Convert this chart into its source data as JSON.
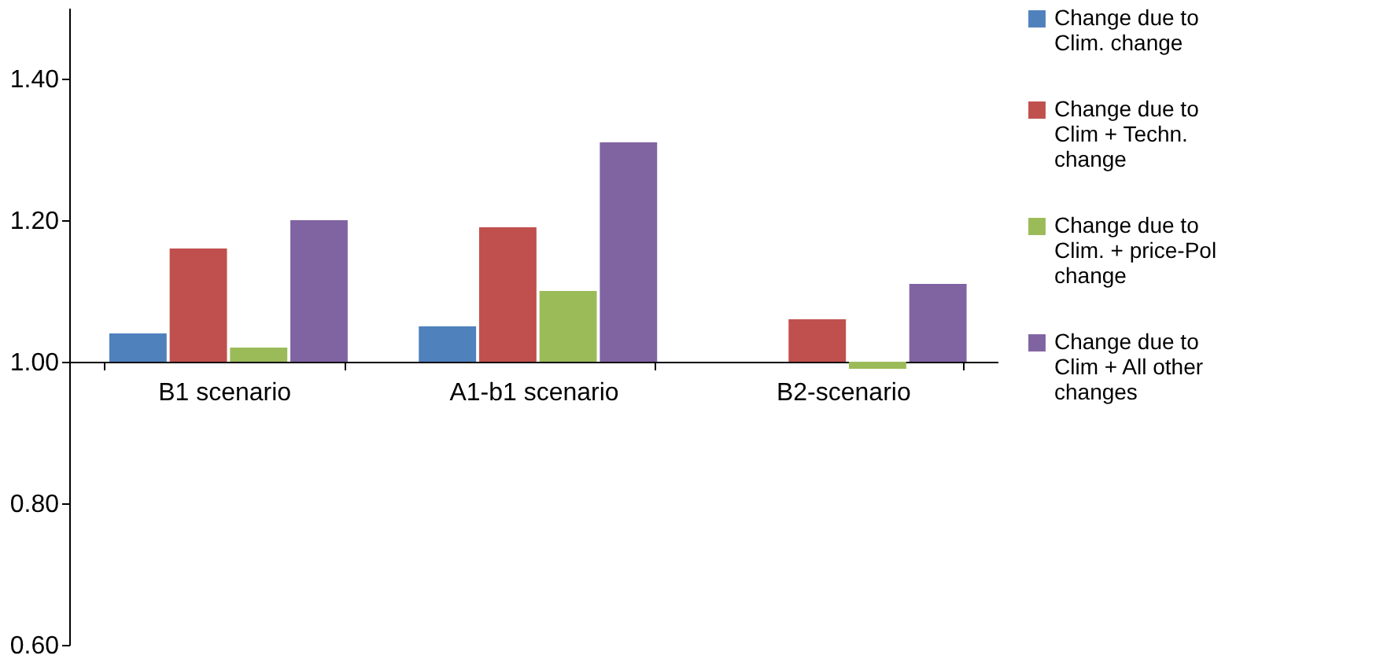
{
  "chart_data": {
    "type": "bar",
    "categories": [
      "B1 scenario",
      "A1-b1 scenario",
      "B2-scenario"
    ],
    "series": [
      {
        "name": "Change due to Clim. change",
        "color": "#4f81bd",
        "base": [
          1.0,
          1.0,
          null
        ],
        "values": [
          0.04,
          0.05,
          null
        ]
      },
      {
        "name": "Change due to Clim + Techn. change",
        "color": "#c0504d",
        "base": [
          1.0,
          1.0,
          1.0
        ],
        "values": [
          0.16,
          0.19,
          0.06
        ]
      },
      {
        "name": "Change due to Clim. + price-Pol change",
        "color": "#9bbb59",
        "base": [
          1.0,
          1.0,
          1.0
        ],
        "values": [
          0.02,
          0.1,
          -0.01
        ]
      },
      {
        "name": "Change due to Clim + All other changes",
        "color": "#8064a2",
        "base": [
          1.0,
          1.0,
          1.0
        ],
        "values": [
          0.2,
          0.31,
          0.11
        ]
      }
    ],
    "ylim": [
      0.6,
      1.5
    ],
    "yticks": [
      {
        "value": 0.6,
        "label": "0.60"
      },
      {
        "value": 0.8,
        "label": "0.80"
      },
      {
        "value": 1.0,
        "label": "1.00"
      },
      {
        "value": 1.2,
        "label": "1.20"
      },
      {
        "value": 1.4,
        "label": "1.40"
      }
    ],
    "grid": false,
    "legend": "right"
  }
}
